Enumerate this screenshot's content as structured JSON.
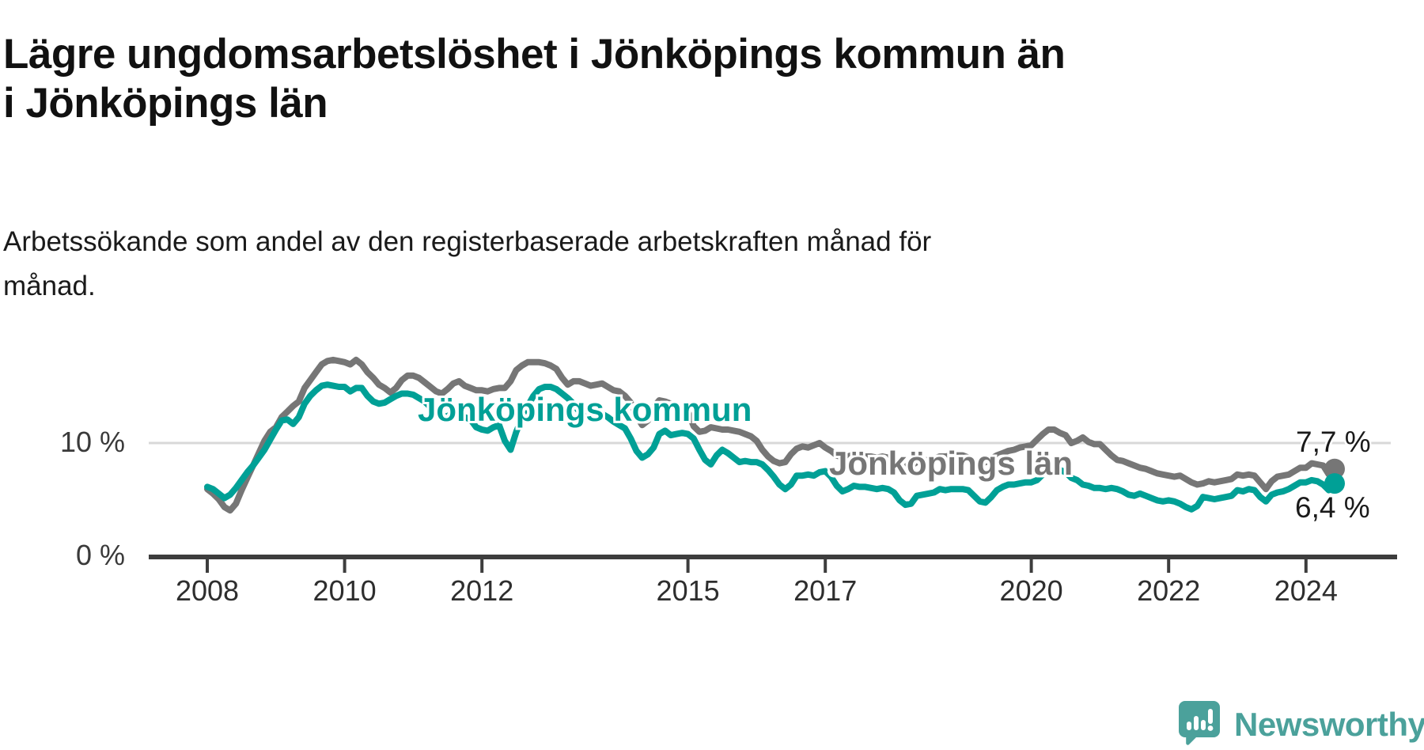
{
  "title": "Lägre ungdomsarbetslöshet i Jönköpings kommun än\ni Jönköpings län",
  "subtitle": "Arbetssökande som andel av den registerbaserade arbetskraften månad för\nmånad.",
  "colors": {
    "kommun_line": "#00a096",
    "lan_line": "#767676",
    "gridline": "#d8d8d8",
    "axis": "#3d3d3d",
    "text": "#1a1a1a",
    "brand": "#4ba19b"
  },
  "footer": {
    "brand": "Newsworthy",
    "icon": "newsworthy-speech-bubble-chart-icon"
  },
  "chart_data": {
    "type": "line",
    "title": "Lägre ungdomsarbetslöshet i Jönköpings kommun än i Jönköpings län",
    "subtitle": "Arbetssökande som andel av den registerbaserade arbetskraften månad för månad.",
    "unit": "%",
    "x_start": {
      "year": 2008,
      "month": 1
    },
    "x_end": {
      "year": 2024,
      "month": 6
    },
    "points_per_year": 12,
    "ylim": [
      0,
      18.5
    ],
    "grid": "horizontal line at 10 % only",
    "legend_position": "inline labels on lines",
    "y_ticks": [
      {
        "value": 0,
        "label": "0 %"
      },
      {
        "value": 10,
        "label": "10 %"
      }
    ],
    "x_ticks": [
      {
        "year": 2008,
        "label": "2008"
      },
      {
        "year": 2010,
        "label": "2010"
      },
      {
        "year": 2012,
        "label": "2012"
      },
      {
        "year": 2015,
        "label": "2015"
      },
      {
        "year": 2017,
        "label": "2017"
      },
      {
        "year": 2020,
        "label": "2020"
      },
      {
        "year": 2022,
        "label": "2022"
      },
      {
        "year": 2024,
        "label": "2024"
      }
    ],
    "series": [
      {
        "name": "Jönköpings län",
        "label_text": "Jönköpings län",
        "color": "#767676",
        "end_value": 7.7,
        "end_label": "7,7 %",
        "monthly_values": [
          5.9,
          5.5,
          5.0,
          4.3,
          4.0,
          4.6,
          5.8,
          6.9,
          8.0,
          9.1,
          10.2,
          11.0,
          11.4,
          12.3,
          12.8,
          13.3,
          13.7,
          14.9,
          15.6,
          16.3,
          17.0,
          17.3,
          17.4,
          17.3,
          17.2,
          17.0,
          17.4,
          17.0,
          16.3,
          15.8,
          15.2,
          14.9,
          14.5,
          14.9,
          15.6,
          16.0,
          16.0,
          15.8,
          15.4,
          15.0,
          14.6,
          14.4,
          14.8,
          15.3,
          15.5,
          15.1,
          14.9,
          14.7,
          14.7,
          14.6,
          14.8,
          14.9,
          14.9,
          15.5,
          16.5,
          16.9,
          17.2,
          17.2,
          17.2,
          17.1,
          16.9,
          16.6,
          15.8,
          15.2,
          15.5,
          15.5,
          15.3,
          15.1,
          15.2,
          15.3,
          15.0,
          14.7,
          14.6,
          14.2,
          13.6,
          12.4,
          11.6,
          12.0,
          13.2,
          13.8,
          13.7,
          13.5,
          13.2,
          12.9,
          12.8,
          11.5,
          11.0,
          11.1,
          11.4,
          11.3,
          11.2,
          11.2,
          11.1,
          11.0,
          10.8,
          10.6,
          10.2,
          9.4,
          8.8,
          8.4,
          8.2,
          8.3,
          9.0,
          9.5,
          9.7,
          9.6,
          9.8,
          10.0,
          9.6,
          9.3,
          8.9,
          8.7,
          8.8,
          9.0,
          8.9,
          8.8,
          8.8,
          8.7,
          8.8,
          8.7,
          8.5,
          8.1,
          7.9,
          8.0,
          8.3,
          8.4,
          8.5,
          8.6,
          8.8,
          8.8,
          8.9,
          8.9,
          8.9,
          8.7,
          8.3,
          8.1,
          8.3,
          8.6,
          8.9,
          9.1,
          9.3,
          9.4,
          9.6,
          9.7,
          9.8,
          10.3,
          10.8,
          11.2,
          11.2,
          10.9,
          10.7,
          10.0,
          10.2,
          10.5,
          10.1,
          9.9,
          9.9,
          9.4,
          8.9,
          8.5,
          8.4,
          8.2,
          8.0,
          7.8,
          7.7,
          7.5,
          7.3,
          7.2,
          7.1,
          7.0,
          7.1,
          6.8,
          6.5,
          6.3,
          6.4,
          6.6,
          6.5,
          6.6,
          6.7,
          6.8,
          7.2,
          7.1,
          7.2,
          7.1,
          6.5,
          5.9,
          6.6,
          7.0,
          7.1,
          7.2,
          7.5,
          7.8,
          7.8,
          8.2,
          8.1,
          8.0,
          7.2,
          7.7
        ]
      },
      {
        "name": "Jönköpings kommun",
        "label_text": "Jönköpings kommun",
        "color": "#00a096",
        "end_value": 6.4,
        "end_label": "6,4 %",
        "monthly_values": [
          6.1,
          5.9,
          5.5,
          5.1,
          5.4,
          6.0,
          6.7,
          7.4,
          8.0,
          8.7,
          9.4,
          10.3,
          11.2,
          12.0,
          12.1,
          11.7,
          12.3,
          13.5,
          14.2,
          14.7,
          15.1,
          15.2,
          15.1,
          15.0,
          15.0,
          14.6,
          14.9,
          14.9,
          14.2,
          13.7,
          13.5,
          13.6,
          13.9,
          14.2,
          14.4,
          14.4,
          14.3,
          14.0,
          13.7,
          13.2,
          12.6,
          12.3,
          12.4,
          12.7,
          12.5,
          12.3,
          12.1,
          11.4,
          11.2,
          11.1,
          11.4,
          11.6,
          10.2,
          9.4,
          11.0,
          12.2,
          13.3,
          14.2,
          14.8,
          15.0,
          15.0,
          14.8,
          14.4,
          14.0,
          13.5,
          12.8,
          12.6,
          12.9,
          12.8,
          12.6,
          12.3,
          11.9,
          11.6,
          11.3,
          10.4,
          9.3,
          8.7,
          9.0,
          9.6,
          10.8,
          11.1,
          10.7,
          10.8,
          10.9,
          10.8,
          10.4,
          9.4,
          8.5,
          8.1,
          8.9,
          9.4,
          9.1,
          8.7,
          8.3,
          8.4,
          8.3,
          8.3,
          8.1,
          7.6,
          7.0,
          6.3,
          5.9,
          6.3,
          7.1,
          7.1,
          7.2,
          7.1,
          7.4,
          7.5,
          7.0,
          6.2,
          5.7,
          5.9,
          6.2,
          6.1,
          6.1,
          6.0,
          5.9,
          6.0,
          5.9,
          5.6,
          4.9,
          4.5,
          4.6,
          5.3,
          5.4,
          5.5,
          5.6,
          5.9,
          5.8,
          5.9,
          5.9,
          5.9,
          5.8,
          5.3,
          4.8,
          4.7,
          5.2,
          5.8,
          6.1,
          6.3,
          6.3,
          6.4,
          6.5,
          6.5,
          6.7,
          7.2,
          7.7,
          7.8,
          7.6,
          7.4,
          6.9,
          6.7,
          6.3,
          6.2,
          6.0,
          6.0,
          5.9,
          6.0,
          5.9,
          5.7,
          5.4,
          5.3,
          5.5,
          5.3,
          5.1,
          4.9,
          4.8,
          4.9,
          4.8,
          4.6,
          4.3,
          4.1,
          4.4,
          5.2,
          5.1,
          5.0,
          5.1,
          5.2,
          5.3,
          5.8,
          5.7,
          5.9,
          5.8,
          5.2,
          4.8,
          5.4,
          5.6,
          5.7,
          5.9,
          6.2,
          6.5,
          6.5,
          6.7,
          6.6,
          6.3,
          5.8,
          6.4
        ]
      }
    ]
  }
}
